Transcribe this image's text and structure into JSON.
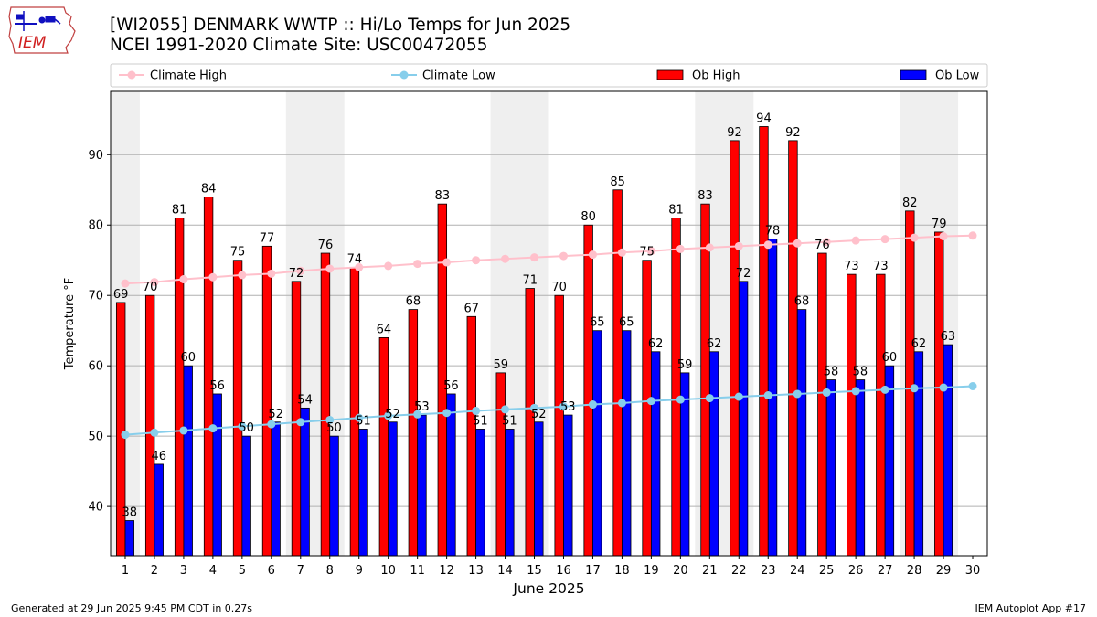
{
  "logo": {
    "text": "IEM",
    "icon": "iem-logo-icon"
  },
  "title_line1": "[WI2055] DENMARK WWTP :: Hi/Lo Temps for Jun 2025",
  "title_line2": "NCEI 1991-2020 Climate Site: USC00472055",
  "footer_left": "Generated at 29 Jun 2025 9:45 PM CDT in 0.27s",
  "footer_right": "IEM Autoplot App #17",
  "chart_data": {
    "type": "bar",
    "xlabel": "June 2025",
    "ylabel": "Temperature °F",
    "ylim": [
      33,
      99
    ],
    "xlim": [
      0.5,
      30.5
    ],
    "yticks": [
      40,
      50,
      60,
      70,
      80,
      90
    ],
    "grid": "horizontal",
    "legend_placement": "top",
    "weekend_shading": [
      [
        1,
        1
      ],
      [
        7,
        8
      ],
      [
        14,
        15
      ],
      [
        21,
        22
      ],
      [
        28,
        29
      ]
    ],
    "days": [
      1,
      2,
      3,
      4,
      5,
      6,
      7,
      8,
      9,
      10,
      11,
      12,
      13,
      14,
      15,
      16,
      17,
      18,
      19,
      20,
      21,
      22,
      23,
      24,
      25,
      26,
      27,
      28,
      29,
      30
    ],
    "series": [
      {
        "name": "Climate High",
        "kind": "line",
        "color": "#ffc0cb",
        "values": [
          71.7,
          71.9,
          72.3,
          72.6,
          72.9,
          73.1,
          73.5,
          73.8,
          74.0,
          74.2,
          74.5,
          74.7,
          75.0,
          75.2,
          75.4,
          75.6,
          75.8,
          76.1,
          76.3,
          76.6,
          76.8,
          77.0,
          77.2,
          77.4,
          77.6,
          77.8,
          78.0,
          78.2,
          78.4,
          78.5
        ]
      },
      {
        "name": "Climate Low",
        "kind": "line",
        "color": "#87ceeb",
        "values": [
          50.2,
          50.5,
          50.8,
          51.1,
          51.4,
          51.7,
          52.0,
          52.3,
          52.6,
          52.9,
          53.1,
          53.3,
          53.6,
          53.8,
          54.0,
          54.2,
          54.5,
          54.7,
          55.0,
          55.2,
          55.4,
          55.6,
          55.8,
          56.0,
          56.2,
          56.4,
          56.6,
          56.8,
          56.9,
          57.1
        ]
      },
      {
        "name": "Ob High",
        "kind": "bar",
        "color": "#ff0000",
        "values": [
          69,
          70,
          81,
          84,
          75,
          77,
          72,
          76,
          74,
          64,
          68,
          83,
          67,
          59,
          71,
          70,
          80,
          85,
          75,
          81,
          83,
          92,
          94,
          92,
          76,
          73,
          73,
          82,
          79
        ]
      },
      {
        "name": "Ob Low",
        "kind": "bar",
        "color": "#0000ff",
        "values": [
          38,
          46,
          60,
          56,
          50,
          52,
          54,
          50,
          51,
          52,
          53,
          56,
          51,
          51,
          52,
          53,
          65,
          65,
          62,
          59,
          62,
          72,
          78,
          68,
          58,
          58,
          60,
          62,
          63
        ]
      }
    ]
  }
}
